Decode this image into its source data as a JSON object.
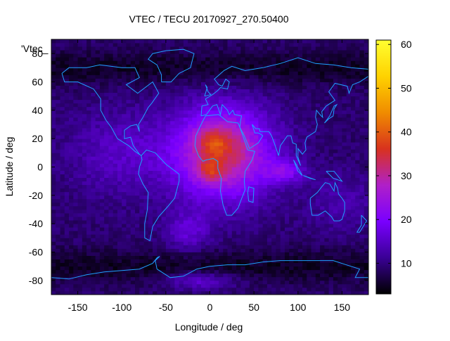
{
  "chart_data": {
    "type": "heatmap",
    "title": "VTEC / TECU 20170927_270.50400",
    "xlabel": "Longitude / deg",
    "ylabel": "Latitude / deg",
    "key_label": "'Vtec_",
    "xlim": [
      -180,
      180
    ],
    "ylim": [
      -90,
      90
    ],
    "x_ticks": [
      -150,
      -100,
      -50,
      0,
      50,
      100,
      150
    ],
    "y_ticks": [
      -80,
      -60,
      -40,
      -20,
      0,
      20,
      40,
      60,
      80
    ],
    "colorbar": {
      "range": [
        3,
        61
      ],
      "ticks": [
        10,
        20,
        30,
        40,
        50,
        60
      ]
    },
    "colormap": [
      "#000000",
      "#3a0096",
      "#7a00ff",
      "#b020c8",
      "#d8321e",
      "#f08c00",
      "#ffd200",
      "#ffff30"
    ],
    "coastline_color": "#1fa0ff",
    "grid": false,
    "cell_size_deg": [
      5,
      2.5
    ],
    "field_model": {
      "base": 9,
      "components": [
        {
          "amp": 24,
          "lon": 15,
          "lat": 10,
          "slon": 55,
          "slat": 32
        },
        {
          "amp": 8,
          "lon": 5,
          "lat": 18,
          "slon": 18,
          "slat": 10
        },
        {
          "amp": 9,
          "lon": 0,
          "lat": -3,
          "slon": 14,
          "slat": 8
        },
        {
          "amp": 10,
          "lon": 85,
          "lat": -3,
          "slon": 22,
          "slat": 8
        },
        {
          "amp": 7,
          "lon": -25,
          "lat": -45,
          "slon": 25,
          "slat": 14
        },
        {
          "amp": 6,
          "lon": -100,
          "lat": 10,
          "slon": 60,
          "slat": 30
        },
        {
          "amp": 4,
          "lon": 150,
          "lat": -25,
          "slon": 40,
          "slat": 20
        },
        {
          "amp": 8,
          "lon": -10,
          "lat": -80,
          "slon": 40,
          "slat": 6
        }
      ]
    }
  }
}
